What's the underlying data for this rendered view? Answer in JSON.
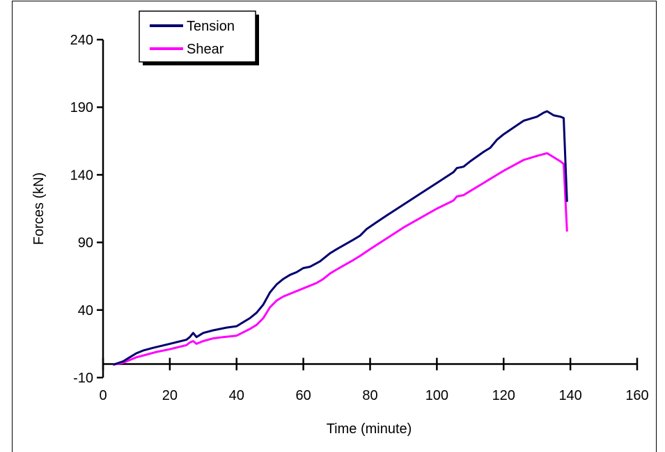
{
  "chart_data": {
    "type": "line",
    "title": "",
    "xlabel": "Time (minute)",
    "ylabel": "Forces (kN)",
    "xlim": [
      0,
      160
    ],
    "ylim": [
      -10,
      240
    ],
    "x_ticks": [
      0,
      20,
      40,
      60,
      80,
      100,
      120,
      140,
      160
    ],
    "y_ticks": [
      -10,
      40,
      90,
      140,
      190,
      240
    ],
    "grid": false,
    "legend_position": "top-left",
    "series": [
      {
        "name": "Tension",
        "color": "#00006e",
        "points": [
          [
            3,
            -0.5
          ],
          [
            6,
            2
          ],
          [
            8,
            5
          ],
          [
            10,
            8
          ],
          [
            12,
            10
          ],
          [
            15,
            12
          ],
          [
            20,
            15
          ],
          [
            25,
            18
          ],
          [
            26,
            20
          ],
          [
            27,
            23
          ],
          [
            28,
            20
          ],
          [
            30,
            23
          ],
          [
            33,
            25
          ],
          [
            37,
            27
          ],
          [
            40,
            28
          ],
          [
            42,
            31
          ],
          [
            44,
            34
          ],
          [
            46,
            38
          ],
          [
            48,
            44
          ],
          [
            50,
            53
          ],
          [
            52,
            59
          ],
          [
            54,
            63
          ],
          [
            56,
            66
          ],
          [
            58,
            68
          ],
          [
            60,
            71
          ],
          [
            62,
            72
          ],
          [
            65,
            76
          ],
          [
            68,
            82
          ],
          [
            70,
            85
          ],
          [
            75,
            92
          ],
          [
            77,
            95
          ],
          [
            79,
            100
          ],
          [
            82,
            105
          ],
          [
            85,
            110
          ],
          [
            90,
            118
          ],
          [
            95,
            126
          ],
          [
            100,
            134
          ],
          [
            105,
            142
          ],
          [
            106,
            145
          ],
          [
            108,
            146
          ],
          [
            110,
            150
          ],
          [
            114,
            157
          ],
          [
            116,
            160
          ],
          [
            118,
            166
          ],
          [
            120,
            170
          ],
          [
            123,
            175
          ],
          [
            126,
            180
          ],
          [
            130,
            183
          ],
          [
            132,
            186
          ],
          [
            133,
            187
          ],
          [
            135,
            184
          ],
          [
            137,
            183
          ],
          [
            138,
            182
          ],
          [
            139,
            120
          ]
        ]
      },
      {
        "name": "Shear",
        "color": "#ff00ff",
        "points": [
          [
            3,
            -0.5
          ],
          [
            6,
            1
          ],
          [
            8,
            3
          ],
          [
            10,
            5
          ],
          [
            13,
            7
          ],
          [
            16,
            9
          ],
          [
            20,
            11
          ],
          [
            25,
            14
          ],
          [
            26,
            16
          ],
          [
            27,
            17
          ],
          [
            28,
            15
          ],
          [
            30,
            17
          ],
          [
            33,
            19
          ],
          [
            36,
            20
          ],
          [
            40,
            21
          ],
          [
            44,
            26
          ],
          [
            46,
            29
          ],
          [
            48,
            34
          ],
          [
            50,
            42
          ],
          [
            52,
            47
          ],
          [
            54,
            50
          ],
          [
            56,
            52
          ],
          [
            58,
            54
          ],
          [
            60,
            56
          ],
          [
            62,
            58
          ],
          [
            64,
            60
          ],
          [
            66,
            63
          ],
          [
            68,
            67
          ],
          [
            70,
            70
          ],
          [
            75,
            77
          ],
          [
            77,
            80
          ],
          [
            80,
            85
          ],
          [
            85,
            93
          ],
          [
            90,
            101
          ],
          [
            95,
            108
          ],
          [
            100,
            115
          ],
          [
            105,
            121
          ],
          [
            106,
            124
          ],
          [
            108,
            125
          ],
          [
            110,
            128
          ],
          [
            114,
            134
          ],
          [
            116,
            137
          ],
          [
            118,
            140
          ],
          [
            120,
            143
          ],
          [
            123,
            147
          ],
          [
            126,
            151
          ],
          [
            130,
            154
          ],
          [
            133,
            156
          ],
          [
            135,
            153
          ],
          [
            137,
            150
          ],
          [
            138,
            148
          ],
          [
            139,
            98
          ]
        ]
      }
    ]
  }
}
